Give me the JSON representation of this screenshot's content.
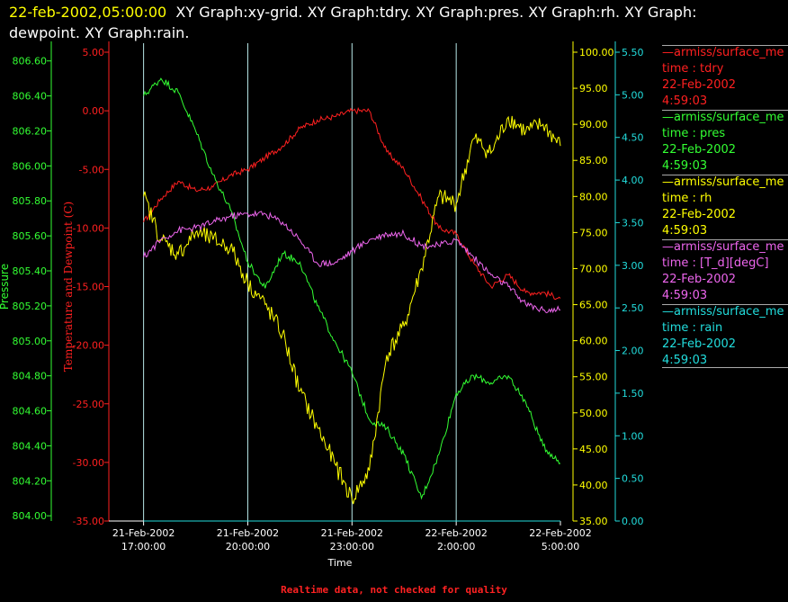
{
  "header": {
    "timestamp": "22-feb-2002,05:00:00",
    "graphs_line1": "XY Graph:xy-grid.  XY Graph:tdry.  XY Graph:pres.  XY Graph:rh.  XY Graph:",
    "graphs_line2": "dewpoint.  XY Graph:rain."
  },
  "footer": {
    "note": "Realtime data, not checked for quality"
  },
  "colors": {
    "tdry": "#ff2020",
    "pres": "#33ff33",
    "rh": "#ffff00",
    "dewpoint": "#ee66ee",
    "rain": "#22dddd",
    "grid": "#b8e8e8",
    "text": "#ffffff"
  },
  "legend": [
    {
      "series": "—armiss/surface_me",
      "var": "time : tdry",
      "date": "22-Feb-2002",
      "time": "4:59:03",
      "color": "#ff2020"
    },
    {
      "series": "—armiss/surface_me",
      "var": "time : pres",
      "date": "22-Feb-2002",
      "time": "4:59:03",
      "color": "#33ff33"
    },
    {
      "series": "—armiss/surface_me",
      "var": "time : rh",
      "date": "22-Feb-2002",
      "time": "4:59:03",
      "color": "#ffff00"
    },
    {
      "series": "—armiss/surface_me",
      "var": "time : [T_d][degC]",
      "date": "22-Feb-2002",
      "time": "4:59:03",
      "color": "#ee66ee"
    },
    {
      "series": "—armiss/surface_me",
      "var": "time : rain",
      "date": "22-Feb-2002",
      "time": "4:59:03",
      "color": "#22dddd"
    }
  ],
  "chart_data": {
    "type": "line",
    "xlabel": "Time",
    "x_range": [
      "21-Feb-2002 16:00",
      "22-Feb-2002 05:00"
    ],
    "x_ticks": [
      {
        "t": "21-Feb-2002 17:00",
        "line1": "21-Feb-2002",
        "line2": "17:00:00"
      },
      {
        "t": "21-Feb-2002 20:00",
        "line1": "21-Feb-2002",
        "line2": "20:00:00"
      },
      {
        "t": "21-Feb-2002 23:00",
        "line1": "21-Feb-2002",
        "line2": "23:00:00"
      },
      {
        "t": "22-Feb-2002 02:00",
        "line1": "22-Feb-2002",
        "line2": "2:00:00"
      },
      {
        "t": "22-Feb-2002 05:00",
        "line1": "22-Feb-2002",
        "line2": "5:00:00"
      }
    ],
    "axes": {
      "pressure": {
        "label": "Pressure",
        "ylim": [
          803.97,
          806.65
        ],
        "ticks": [
          "806.60",
          "806.40",
          "806.20",
          "806.00",
          "805.80",
          "805.60",
          "805.40",
          "805.20",
          "805.00",
          "804.80",
          "804.60",
          "804.40",
          "804.20",
          "804.00"
        ]
      },
      "temperature": {
        "label": "Temperature and Dewpoint (C)",
        "ylim": [
          -35,
          5
        ],
        "ticks": [
          "5.00",
          "0.00",
          "-5.00",
          "-10.00",
          "-15.00",
          "-20.00",
          "-25.00",
          "-30.00",
          "-35.00"
        ]
      },
      "rh": {
        "ylim": [
          35,
          100
        ],
        "ticks": [
          "100.00",
          "95.00",
          "90.00",
          "85.00",
          "80.00",
          "75.00",
          "70.00",
          "65.00",
          "60.00",
          "55.00",
          "50.00",
          "45.00",
          "40.00",
          "35.00"
        ]
      },
      "rain": {
        "ylim": [
          0,
          5.5
        ],
        "ticks": [
          "5.50",
          "5.00",
          "4.50",
          "4.00",
          "3.50",
          "3.00",
          "2.50",
          "2.00",
          "1.50",
          "1.00",
          "0.50",
          "0.00"
        ]
      }
    },
    "grid": true,
    "series": [
      {
        "name": "tdry",
        "axis": "temperature",
        "x": [
          "21-Feb-2002 17:00",
          "21-Feb-2002 17:30",
          "21-Feb-2002 18:00",
          "21-Feb-2002 18:30",
          "21-Feb-2002 19:00",
          "21-Feb-2002 19:30",
          "21-Feb-2002 20:00",
          "21-Feb-2002 20:30",
          "21-Feb-2002 21:00",
          "21-Feb-2002 21:30",
          "21-Feb-2002 22:00",
          "21-Feb-2002 22:30",
          "21-Feb-2002 23:00",
          "21-Feb-2002 23:30",
          "22-Feb-2002 00:00",
          "22-Feb-2002 00:30",
          "22-Feb-2002 01:00",
          "22-Feb-2002 01:30",
          "22-Feb-2002 02:00",
          "22-Feb-2002 02:30",
          "22-Feb-2002 03:00",
          "22-Feb-2002 03:30",
          "22-Feb-2002 04:00",
          "22-Feb-2002 04:30",
          "22-Feb-2002 05:00"
        ],
        "y": [
          -9.5,
          -7.5,
          -6.0,
          -6.8,
          -6.5,
          -5.5,
          -5.0,
          -4.0,
          -3.0,
          -1.5,
          -0.8,
          -0.5,
          0.0,
          0.0,
          -3.5,
          -5.0,
          -7.5,
          -10.0,
          -10.5,
          -13.0,
          -15.0,
          -14.0,
          -15.5,
          -15.5,
          -16.0
        ]
      },
      {
        "name": "pres",
        "axis": "pressure",
        "x": [
          "21-Feb-2002 17:00",
          "21-Feb-2002 17:30",
          "21-Feb-2002 18:00",
          "21-Feb-2002 18:30",
          "21-Feb-2002 19:00",
          "21-Feb-2002 19:30",
          "21-Feb-2002 20:00",
          "21-Feb-2002 20:30",
          "21-Feb-2002 21:00",
          "21-Feb-2002 21:30",
          "21-Feb-2002 22:00",
          "21-Feb-2002 22:30",
          "21-Feb-2002 23:00",
          "21-Feb-2002 23:30",
          "22-Feb-2002 00:00",
          "22-Feb-2002 00:30",
          "22-Feb-2002 01:00",
          "22-Feb-2002 01:30",
          "22-Feb-2002 02:00",
          "22-Feb-2002 02:30",
          "22-Feb-2002 03:00",
          "22-Feb-2002 03:30",
          "22-Feb-2002 04:00",
          "22-Feb-2002 04:30",
          "22-Feb-2002 05:00"
        ],
        "y": [
          806.4,
          806.5,
          806.42,
          806.2,
          805.95,
          805.75,
          805.45,
          805.3,
          805.5,
          805.45,
          805.2,
          805.0,
          804.82,
          804.55,
          804.5,
          804.35,
          804.1,
          804.35,
          804.7,
          804.8,
          804.76,
          804.8,
          804.65,
          804.4,
          804.3
        ]
      },
      {
        "name": "rh",
        "axis": "rh",
        "x": [
          "21-Feb-2002 17:00",
          "21-Feb-2002 17:30",
          "21-Feb-2002 18:00",
          "21-Feb-2002 18:30",
          "21-Feb-2002 19:00",
          "21-Feb-2002 19:30",
          "21-Feb-2002 20:00",
          "21-Feb-2002 20:30",
          "21-Feb-2002 21:00",
          "21-Feb-2002 21:30",
          "21-Feb-2002 22:00",
          "21-Feb-2002 22:30",
          "21-Feb-2002 23:00",
          "21-Feb-2002 23:30",
          "22-Feb-2002 00:00",
          "22-Feb-2002 00:30",
          "22-Feb-2002 01:00",
          "22-Feb-2002 01:30",
          "22-Feb-2002 02:00",
          "22-Feb-2002 02:30",
          "22-Feb-2002 03:00",
          "22-Feb-2002 03:30",
          "22-Feb-2002 04:00",
          "22-Feb-2002 04:30",
          "22-Feb-2002 05:00"
        ],
        "y": [
          80.0,
          74.0,
          72.0,
          75.0,
          74.0,
          73.0,
          68.0,
          65.0,
          61.0,
          53.0,
          48.0,
          43.0,
          38.0,
          42.0,
          58.0,
          62.0,
          70.0,
          80.0,
          79.0,
          88.0,
          86.0,
          91.0,
          89.0,
          90.0,
          87.0
        ]
      },
      {
        "name": "dewpoint",
        "axis": "temperature",
        "x": [
          "21-Feb-2002 17:00",
          "21-Feb-2002 17:30",
          "21-Feb-2002 18:00",
          "21-Feb-2002 18:30",
          "21-Feb-2002 19:00",
          "21-Feb-2002 19:30",
          "21-Feb-2002 20:00",
          "21-Feb-2002 20:30",
          "21-Feb-2002 21:00",
          "21-Feb-2002 21:30",
          "21-Feb-2002 22:00",
          "21-Feb-2002 22:30",
          "21-Feb-2002 23:00",
          "21-Feb-2002 23:30",
          "22-Feb-2002 00:00",
          "22-Feb-2002 00:30",
          "22-Feb-2002 01:00",
          "22-Feb-2002 01:30",
          "22-Feb-2002 02:00",
          "22-Feb-2002 02:30",
          "22-Feb-2002 03:00",
          "22-Feb-2002 03:30",
          "22-Feb-2002 04:00",
          "22-Feb-2002 04:30",
          "22-Feb-2002 05:00"
        ],
        "y": [
          -12.5,
          -11.0,
          -10.2,
          -10.0,
          -9.5,
          -9.0,
          -8.8,
          -8.8,
          -9.5,
          -11.0,
          -13.0,
          -13.0,
          -12.0,
          -11.0,
          -10.5,
          -10.5,
          -11.5,
          -11.5,
          -11.0,
          -12.5,
          -14.0,
          -15.0,
          -16.5,
          -17.0,
          -17.0
        ]
      },
      {
        "name": "rain",
        "axis": "rain",
        "x": [
          "21-Feb-2002 17:00",
          "22-Feb-2002 05:00"
        ],
        "y": [
          0.0,
          0.0
        ]
      }
    ]
  }
}
